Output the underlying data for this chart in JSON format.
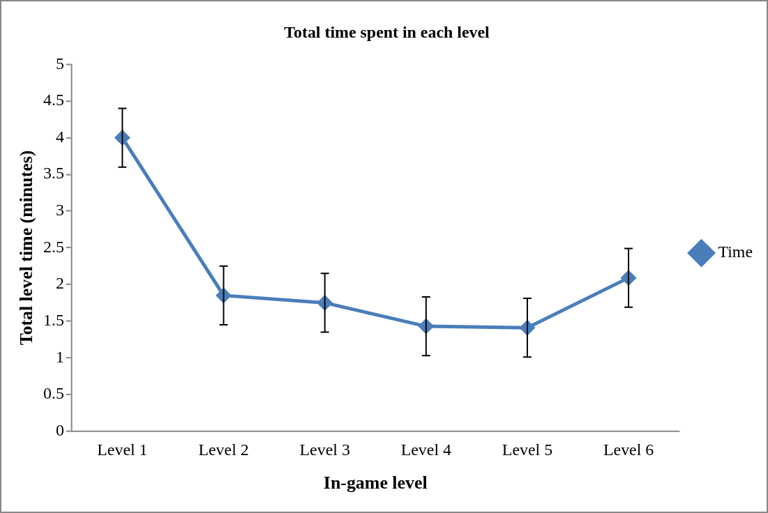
{
  "chart_data": {
    "type": "line",
    "title": "Total time spent in each level",
    "xlabel": "In-game level",
    "ylabel": "Total level time (minutes)",
    "categories": [
      "Level 1",
      "Level 2",
      "Level 3",
      "Level 4",
      "Level 5",
      "Level 6"
    ],
    "series": [
      {
        "name": "Time",
        "color": "#4a7ebb",
        "values": [
          4.0,
          1.85,
          1.75,
          1.43,
          1.41,
          2.09
        ],
        "errors": [
          0.4,
          0.4,
          0.4,
          0.4,
          0.4,
          0.4
        ]
      }
    ],
    "ylim": [
      0,
      5
    ],
    "yticks": [
      0,
      0.5,
      1,
      1.5,
      2,
      2.5,
      3,
      3.5,
      4,
      4.5,
      5
    ],
    "grid": false,
    "legend": "right",
    "marker": "diamond",
    "line_style": "solid"
  }
}
